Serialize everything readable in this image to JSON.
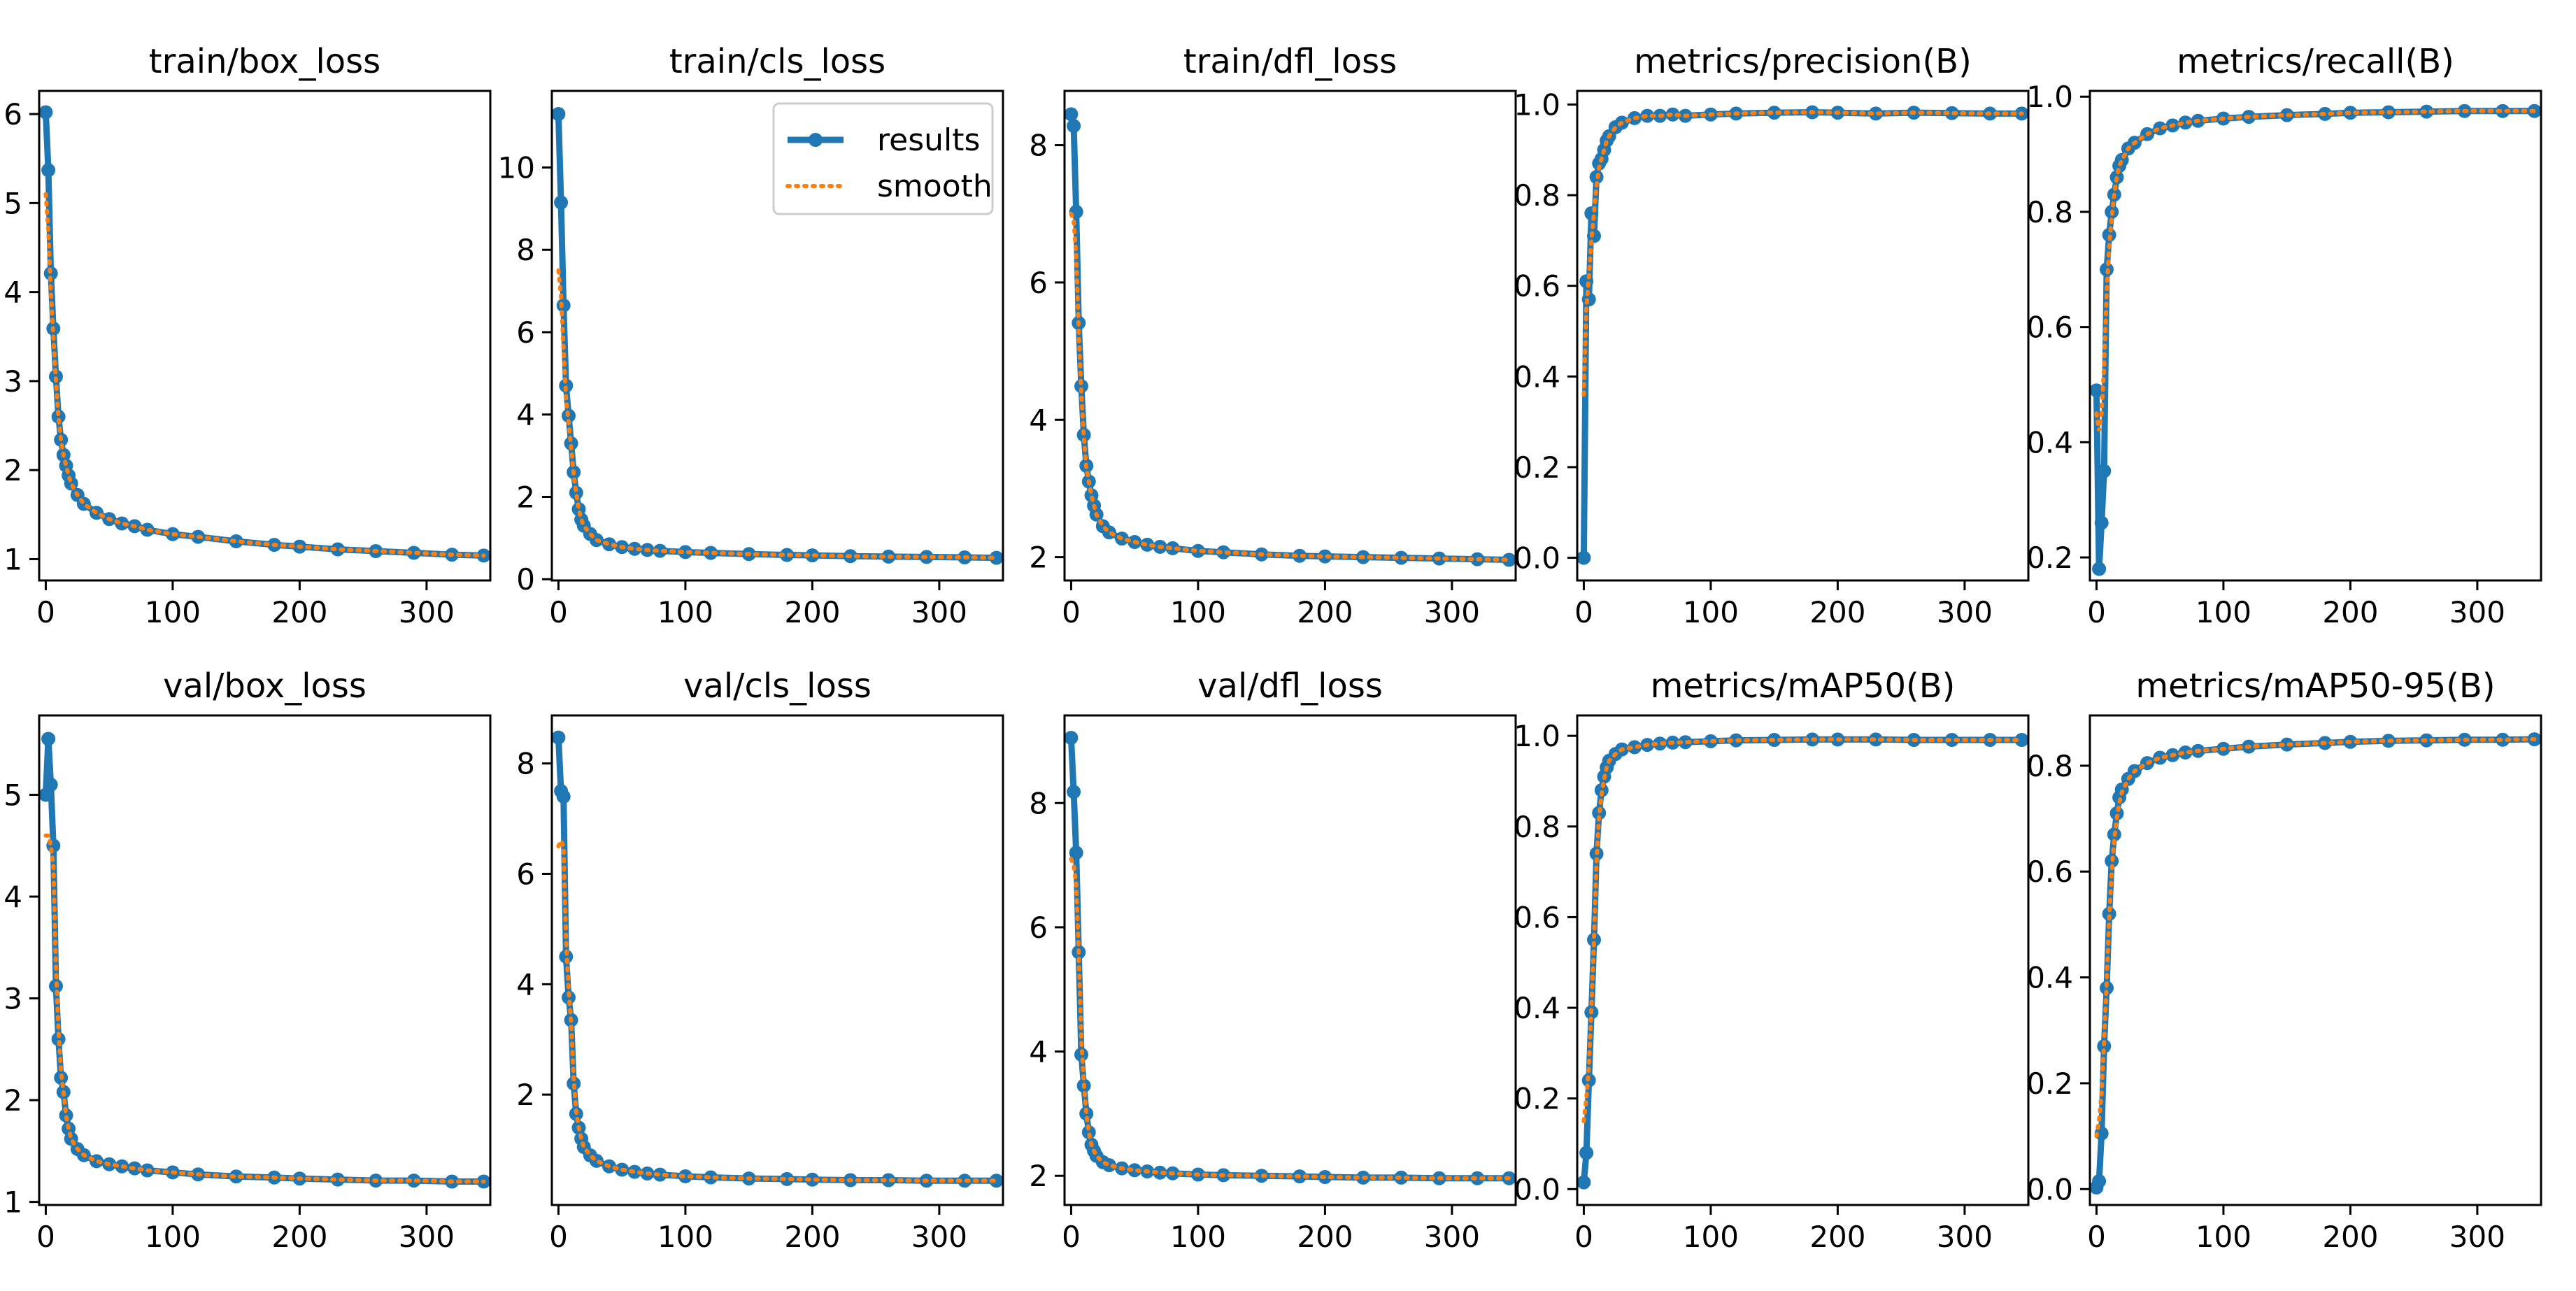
{
  "colors": {
    "results": "#1f77b4",
    "smooth": "#ff7f0e",
    "axes": "#000000",
    "background": "#ffffff"
  },
  "legend": {
    "placement": "top-right",
    "panel": "train/cls_loss",
    "entries": [
      "results",
      "smooth"
    ]
  },
  "chart_data": [
    {
      "type": "line",
      "title": "train/box_loss",
      "xlabel": "",
      "ylabel": "",
      "xlim": [
        -5.2,
        350.2
      ],
      "ylim": [
        0.76,
        6.26
      ],
      "grid": false,
      "xticks": [
        0,
        100,
        200,
        300
      ],
      "yticks": [
        1,
        2,
        3,
        4,
        5,
        6
      ],
      "x": [
        0,
        2,
        4,
        6,
        8,
        10,
        12,
        14,
        16,
        18,
        20,
        25,
        30,
        40,
        50,
        60,
        70,
        80,
        100,
        120,
        150,
        180,
        200,
        230,
        260,
        290,
        320,
        345
      ],
      "series": [
        {
          "name": "results",
          "values": [
            6.02,
            5.37,
            4.21,
            3.59,
            3.05,
            2.6,
            2.34,
            2.17,
            2.05,
            1.94,
            1.85,
            1.72,
            1.62,
            1.52,
            1.45,
            1.4,
            1.37,
            1.33,
            1.28,
            1.25,
            1.2,
            1.16,
            1.14,
            1.11,
            1.09,
            1.07,
            1.05,
            1.04
          ]
        },
        {
          "name": "smooth",
          "values": [
            5.1,
            4.7,
            4.0,
            3.5,
            3.0,
            2.6,
            2.34,
            2.17,
            2.05,
            1.94,
            1.85,
            1.72,
            1.62,
            1.52,
            1.45,
            1.4,
            1.37,
            1.33,
            1.28,
            1.25,
            1.2,
            1.16,
            1.14,
            1.11,
            1.09,
            1.07,
            1.05,
            1.04
          ]
        }
      ]
    },
    {
      "type": "line",
      "title": "train/cls_loss",
      "xlabel": "",
      "ylabel": "",
      "xlim": [
        -5.2,
        350.2
      ],
      "ylim": [
        -0.03,
        11.86
      ],
      "grid": false,
      "xticks": [
        0,
        100,
        200,
        300
      ],
      "yticks": [
        0,
        2,
        4,
        6,
        8,
        10
      ],
      "x": [
        0,
        2,
        4,
        6,
        8,
        10,
        12,
        14,
        16,
        18,
        20,
        25,
        30,
        40,
        50,
        60,
        70,
        80,
        100,
        120,
        150,
        180,
        200,
        230,
        260,
        290,
        320,
        345
      ],
      "series": [
        {
          "name": "results",
          "values": [
            11.3,
            9.15,
            6.65,
            4.7,
            3.97,
            3.3,
            2.6,
            2.1,
            1.7,
            1.45,
            1.3,
            1.1,
            0.95,
            0.85,
            0.78,
            0.74,
            0.71,
            0.69,
            0.66,
            0.64,
            0.61,
            0.59,
            0.58,
            0.56,
            0.55,
            0.54,
            0.53,
            0.52
          ]
        },
        {
          "name": "smooth",
          "values": [
            7.5,
            6.9,
            5.6,
            4.4,
            3.8,
            3.2,
            2.55,
            2.1,
            1.7,
            1.45,
            1.3,
            1.1,
            0.95,
            0.85,
            0.78,
            0.74,
            0.71,
            0.69,
            0.66,
            0.64,
            0.61,
            0.59,
            0.58,
            0.56,
            0.55,
            0.54,
            0.53,
            0.52
          ]
        }
      ]
    },
    {
      "type": "line",
      "title": "train/dfl_loss",
      "xlabel": "",
      "ylabel": "",
      "xlim": [
        -5.2,
        350.2
      ],
      "ylim": [
        1.66,
        8.79
      ],
      "grid": false,
      "xticks": [
        0,
        100,
        200,
        300
      ],
      "yticks": [
        2,
        4,
        6,
        8
      ],
      "x": [
        0,
        2,
        4,
        6,
        8,
        10,
        12,
        14,
        16,
        18,
        20,
        25,
        30,
        40,
        50,
        60,
        70,
        80,
        100,
        120,
        150,
        180,
        200,
        230,
        260,
        290,
        320,
        345
      ],
      "series": [
        {
          "name": "results",
          "values": [
            8.45,
            8.28,
            7.03,
            5.41,
            4.49,
            3.78,
            3.33,
            3.1,
            2.9,
            2.75,
            2.62,
            2.45,
            2.36,
            2.27,
            2.22,
            2.18,
            2.15,
            2.13,
            2.09,
            2.07,
            2.04,
            2.02,
            2.01,
            2.0,
            1.99,
            1.98,
            1.97,
            1.96
          ]
        },
        {
          "name": "smooth",
          "values": [
            7.0,
            6.9,
            6.4,
            5.3,
            4.4,
            3.75,
            3.3,
            3.1,
            2.9,
            2.75,
            2.62,
            2.45,
            2.36,
            2.27,
            2.22,
            2.18,
            2.15,
            2.13,
            2.09,
            2.07,
            2.04,
            2.02,
            2.01,
            2.0,
            1.99,
            1.98,
            1.97,
            1.96
          ]
        }
      ]
    },
    {
      "type": "line",
      "title": "metrics/precision(B)",
      "xlabel": "",
      "ylabel": "",
      "xlim": [
        -5.2,
        350.2
      ],
      "ylim": [
        -0.05,
        1.03
      ],
      "grid": false,
      "xticks": [
        0,
        100,
        200,
        300
      ],
      "yticks": [
        0.0,
        0.2,
        0.4,
        0.6,
        0.8,
        1.0
      ],
      "x": [
        0,
        2,
        4,
        6,
        8,
        10,
        12,
        14,
        16,
        18,
        20,
        25,
        30,
        40,
        50,
        60,
        70,
        80,
        100,
        120,
        150,
        180,
        200,
        230,
        260,
        290,
        320,
        345
      ],
      "series": [
        {
          "name": "results",
          "values": [
            0.0,
            0.61,
            0.57,
            0.76,
            0.71,
            0.84,
            0.87,
            0.88,
            0.9,
            0.92,
            0.93,
            0.95,
            0.96,
            0.97,
            0.975,
            0.975,
            0.978,
            0.975,
            0.978,
            0.98,
            0.982,
            0.983,
            0.982,
            0.98,
            0.982,
            0.981,
            0.98,
            0.98
          ]
        },
        {
          "name": "smooth",
          "values": [
            0.36,
            0.55,
            0.62,
            0.7,
            0.76,
            0.82,
            0.86,
            0.88,
            0.9,
            0.92,
            0.93,
            0.95,
            0.96,
            0.97,
            0.975,
            0.975,
            0.978,
            0.975,
            0.978,
            0.98,
            0.982,
            0.983,
            0.982,
            0.98,
            0.982,
            0.981,
            0.98,
            0.98
          ]
        }
      ]
    },
    {
      "type": "line",
      "title": "metrics/recall(B)",
      "xlabel": "",
      "ylabel": "",
      "xlim": [
        -5.2,
        350.2
      ],
      "ylim": [
        0.16,
        1.01
      ],
      "grid": false,
      "xticks": [
        0,
        100,
        200,
        300
      ],
      "yticks": [
        0.2,
        0.4,
        0.6,
        0.8,
        1.0
      ],
      "x": [
        0,
        2,
        4,
        6,
        8,
        10,
        12,
        14,
        16,
        18,
        20,
        25,
        30,
        40,
        50,
        60,
        70,
        80,
        100,
        120,
        150,
        180,
        200,
        230,
        260,
        290,
        320,
        345
      ],
      "series": [
        {
          "name": "results",
          "values": [
            0.49,
            0.18,
            0.26,
            0.35,
            0.7,
            0.76,
            0.8,
            0.83,
            0.86,
            0.88,
            0.89,
            0.91,
            0.92,
            0.935,
            0.945,
            0.95,
            0.955,
            0.958,
            0.962,
            0.965,
            0.968,
            0.97,
            0.972,
            0.973,
            0.974,
            0.975,
            0.975,
            0.975
          ]
        },
        {
          "name": "smooth",
          "values": [
            0.45,
            0.42,
            0.45,
            0.53,
            0.66,
            0.74,
            0.79,
            0.83,
            0.86,
            0.88,
            0.89,
            0.91,
            0.92,
            0.935,
            0.945,
            0.95,
            0.955,
            0.958,
            0.962,
            0.965,
            0.968,
            0.97,
            0.972,
            0.973,
            0.974,
            0.975,
            0.975,
            0.975
          ]
        }
      ]
    },
    {
      "type": "line",
      "title": "val/box_loss",
      "xlabel": "",
      "ylabel": "",
      "xlim": [
        -5.2,
        350.2
      ],
      "ylim": [
        0.97,
        5.78
      ],
      "grid": false,
      "xticks": [
        0,
        100,
        200,
        300
      ],
      "yticks": [
        1,
        2,
        3,
        4,
        5
      ],
      "x": [
        0,
        2,
        4,
        6,
        8,
        10,
        12,
        14,
        16,
        18,
        20,
        25,
        30,
        40,
        50,
        60,
        70,
        80,
        100,
        120,
        150,
        180,
        200,
        230,
        260,
        290,
        320,
        345
      ],
      "series": [
        {
          "name": "results",
          "values": [
            5.0,
            5.55,
            5.1,
            4.5,
            3.12,
            2.6,
            2.22,
            2.08,
            1.85,
            1.72,
            1.62,
            1.52,
            1.46,
            1.4,
            1.37,
            1.35,
            1.33,
            1.31,
            1.29,
            1.27,
            1.25,
            1.24,
            1.23,
            1.22,
            1.21,
            1.21,
            1.2,
            1.2
          ]
        },
        {
          "name": "smooth",
          "values": [
            4.6,
            4.6,
            4.5,
            4.3,
            3.3,
            2.7,
            2.28,
            2.08,
            1.85,
            1.72,
            1.62,
            1.52,
            1.46,
            1.4,
            1.37,
            1.35,
            1.33,
            1.31,
            1.29,
            1.27,
            1.25,
            1.24,
            1.23,
            1.22,
            1.21,
            1.21,
            1.2,
            1.2
          ]
        }
      ]
    },
    {
      "type": "line",
      "title": "val/cls_loss",
      "xlabel": "",
      "ylabel": "",
      "xlim": [
        -5.2,
        350.2
      ],
      "ylim": [
        0.0,
        8.87
      ],
      "grid": false,
      "xticks": [
        0,
        100,
        200,
        300
      ],
      "yticks": [
        2,
        4,
        6,
        8
      ],
      "x": [
        0,
        2,
        4,
        6,
        8,
        10,
        12,
        14,
        16,
        18,
        20,
        25,
        30,
        40,
        50,
        60,
        70,
        80,
        100,
        120,
        150,
        180,
        200,
        230,
        260,
        290,
        320,
        345
      ],
      "series": [
        {
          "name": "results",
          "values": [
            8.47,
            7.5,
            7.4,
            4.5,
            3.76,
            3.35,
            2.2,
            1.65,
            1.4,
            1.2,
            1.05,
            0.9,
            0.8,
            0.7,
            0.64,
            0.6,
            0.57,
            0.55,
            0.52,
            0.5,
            0.48,
            0.47,
            0.46,
            0.45,
            0.45,
            0.44,
            0.44,
            0.44
          ]
        },
        {
          "name": "smooth",
          "values": [
            6.5,
            6.6,
            6.5,
            4.8,
            3.9,
            3.3,
            2.3,
            1.7,
            1.4,
            1.2,
            1.05,
            0.9,
            0.8,
            0.7,
            0.64,
            0.6,
            0.57,
            0.55,
            0.52,
            0.5,
            0.48,
            0.47,
            0.46,
            0.45,
            0.45,
            0.44,
            0.44,
            0.44
          ]
        }
      ]
    },
    {
      "type": "line",
      "title": "val/dfl_loss",
      "xlabel": "",
      "ylabel": "",
      "xlim": [
        -5.2,
        350.2
      ],
      "ylim": [
        1.53,
        9.41
      ],
      "grid": false,
      "xticks": [
        0,
        100,
        200,
        300
      ],
      "yticks": [
        2,
        4,
        6,
        8
      ],
      "x": [
        0,
        2,
        4,
        6,
        8,
        10,
        12,
        14,
        16,
        18,
        20,
        25,
        30,
        40,
        50,
        60,
        70,
        80,
        100,
        120,
        150,
        180,
        200,
        230,
        260,
        290,
        320,
        345
      ],
      "series": [
        {
          "name": "results",
          "values": [
            9.05,
            8.18,
            7.2,
            5.6,
            3.95,
            3.45,
            3.0,
            2.7,
            2.5,
            2.4,
            2.32,
            2.22,
            2.17,
            2.12,
            2.09,
            2.07,
            2.05,
            2.04,
            2.02,
            2.01,
            2.0,
            1.99,
            1.98,
            1.97,
            1.97,
            1.96,
            1.96,
            1.96
          ]
        },
        {
          "name": "smooth",
          "values": [
            7.1,
            7.0,
            6.7,
            5.6,
            4.2,
            3.5,
            3.0,
            2.7,
            2.5,
            2.4,
            2.32,
            2.22,
            2.17,
            2.12,
            2.09,
            2.07,
            2.05,
            2.04,
            2.02,
            2.01,
            2.0,
            1.99,
            1.98,
            1.97,
            1.97,
            1.96,
            1.96,
            1.96
          ]
        }
      ]
    },
    {
      "type": "line",
      "title": "metrics/mAP50(B)",
      "xlabel": "",
      "ylabel": "",
      "xlim": [
        -5.2,
        350.2
      ],
      "ylim": [
        -0.035,
        1.045
      ],
      "grid": false,
      "xticks": [
        0,
        100,
        200,
        300
      ],
      "yticks": [
        0.0,
        0.2,
        0.4,
        0.6,
        0.8,
        1.0
      ],
      "x": [
        0,
        2,
        4,
        6,
        8,
        10,
        12,
        14,
        16,
        18,
        20,
        25,
        30,
        40,
        50,
        60,
        70,
        80,
        100,
        120,
        150,
        180,
        200,
        230,
        260,
        290,
        320,
        345
      ],
      "series": [
        {
          "name": "results",
          "values": [
            0.015,
            0.08,
            0.24,
            0.39,
            0.55,
            0.74,
            0.83,
            0.88,
            0.91,
            0.93,
            0.945,
            0.96,
            0.97,
            0.975,
            0.98,
            0.983,
            0.985,
            0.986,
            0.988,
            0.99,
            0.991,
            0.992,
            0.992,
            0.992,
            0.991,
            0.991,
            0.991,
            0.991
          ]
        },
        {
          "name": "smooth",
          "values": [
            0.15,
            0.2,
            0.27,
            0.4,
            0.55,
            0.72,
            0.82,
            0.87,
            0.905,
            0.93,
            0.945,
            0.96,
            0.97,
            0.975,
            0.98,
            0.983,
            0.985,
            0.986,
            0.988,
            0.99,
            0.991,
            0.992,
            0.992,
            0.992,
            0.991,
            0.991,
            0.991,
            0.991
          ]
        }
      ]
    },
    {
      "type": "line",
      "title": "metrics/mAP50-95(B)",
      "xlabel": "",
      "ylabel": "",
      "xlim": [
        -5.2,
        350.2
      ],
      "ylim": [
        -0.03,
        0.895
      ],
      "grid": false,
      "xticks": [
        0,
        100,
        200,
        300
      ],
      "yticks": [
        0.0,
        0.2,
        0.4,
        0.6,
        0.8
      ],
      "x": [
        0,
        2,
        4,
        6,
        8,
        10,
        12,
        14,
        16,
        18,
        20,
        25,
        30,
        40,
        50,
        60,
        70,
        80,
        100,
        120,
        150,
        180,
        200,
        230,
        260,
        290,
        320,
        345
      ],
      "series": [
        {
          "name": "results",
          "values": [
            0.003,
            0.015,
            0.105,
            0.27,
            0.38,
            0.52,
            0.62,
            0.67,
            0.71,
            0.74,
            0.755,
            0.775,
            0.79,
            0.805,
            0.815,
            0.82,
            0.825,
            0.828,
            0.832,
            0.836,
            0.84,
            0.843,
            0.845,
            0.847,
            0.848,
            0.849,
            0.849,
            0.85
          ]
        },
        {
          "name": "smooth",
          "values": [
            0.1,
            0.13,
            0.18,
            0.28,
            0.39,
            0.51,
            0.6,
            0.66,
            0.7,
            0.73,
            0.75,
            0.775,
            0.79,
            0.805,
            0.815,
            0.82,
            0.825,
            0.828,
            0.832,
            0.836,
            0.84,
            0.843,
            0.845,
            0.847,
            0.848,
            0.849,
            0.849,
            0.85
          ]
        }
      ]
    }
  ]
}
